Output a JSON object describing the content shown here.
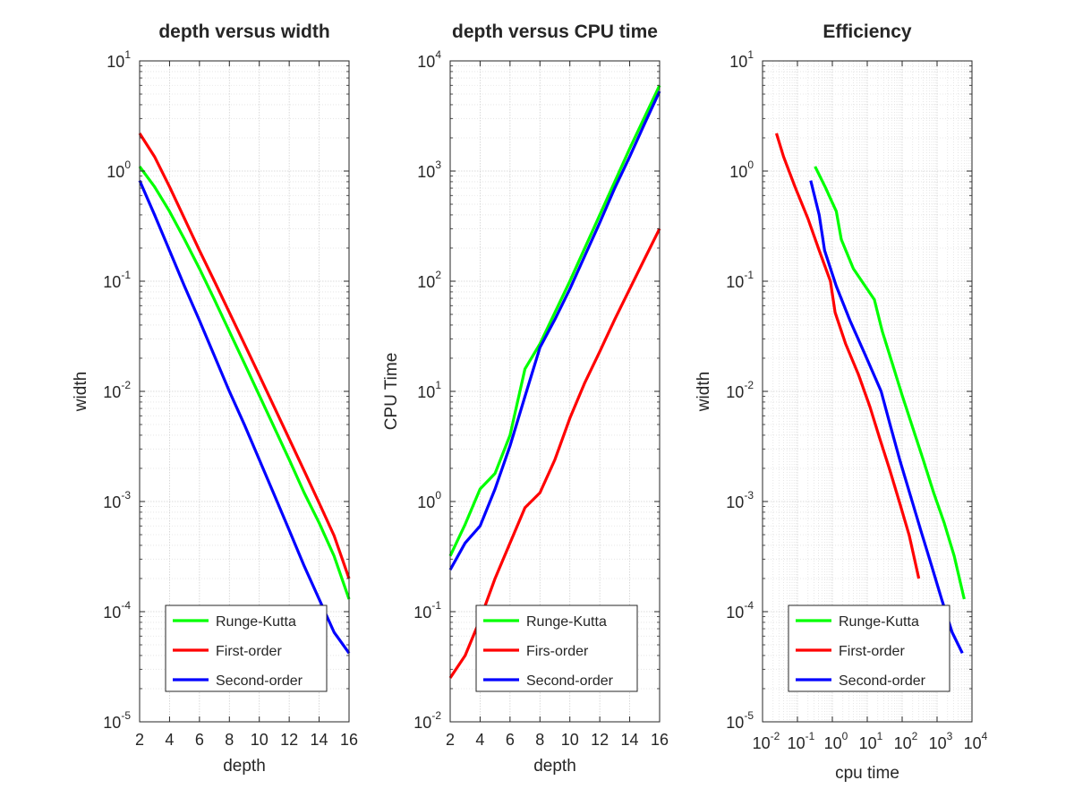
{
  "figure": {
    "background": "#ffffff"
  },
  "colors": {
    "green": "#00ff00",
    "red": "#ff0000",
    "blue": "#0000ff",
    "axis": "#262626"
  },
  "chart_data": [
    {
      "type": "line",
      "title": "depth versus width",
      "xlabel": "depth",
      "ylabel": "width",
      "xscale": "linear",
      "yscale": "log",
      "xlim": [
        2,
        16
      ],
      "ylim": [
        1e-05,
        10
      ],
      "xticks": [
        "2",
        "4",
        "6",
        "8",
        "10",
        "12",
        "14",
        "16"
      ],
      "yticks": [
        {
          "base": "10",
          "exp": "-5"
        },
        {
          "base": "10",
          "exp": "-4"
        },
        {
          "base": "10",
          "exp": "-3"
        },
        {
          "base": "10",
          "exp": "-2"
        },
        {
          "base": "10",
          "exp": "-1"
        },
        {
          "base": "10",
          "exp": "0"
        },
        {
          "base": "10",
          "exp": "1"
        }
      ],
      "grid": true,
      "legend_position": "bottom-center",
      "series": [
        {
          "name": "Runge-Kutta",
          "color": "#00ff00",
          "x": [
            2,
            3,
            4,
            5,
            6,
            7,
            8,
            9,
            10,
            11,
            12,
            13,
            14,
            15,
            16
          ],
          "y": [
            1.1,
            0.72,
            0.43,
            0.24,
            0.13,
            0.068,
            0.035,
            0.018,
            0.0092,
            0.0047,
            0.0024,
            0.0012,
            0.00064,
            0.00032,
            0.00013
          ]
        },
        {
          "name": "First-order",
          "color": "#ff0000",
          "x": [
            2,
            3,
            4,
            5,
            6,
            7,
            8,
            9,
            10,
            11,
            12,
            13,
            14,
            15,
            16
          ],
          "y": [
            2.2,
            1.35,
            0.72,
            0.37,
            0.19,
            0.1,
            0.052,
            0.027,
            0.014,
            0.0072,
            0.0037,
            0.0019,
            0.00097,
            0.00049,
            0.0002
          ]
        },
        {
          "name": "Second-order",
          "color": "#0000ff",
          "x": [
            2,
            3,
            4,
            5,
            6,
            7,
            8,
            9,
            10,
            11,
            12,
            13,
            14,
            15,
            16
          ],
          "y": [
            0.82,
            0.4,
            0.19,
            0.09,
            0.044,
            0.021,
            0.01,
            0.005,
            0.0024,
            0.00115,
            0.00055,
            0.00026,
            0.00013,
            6.5e-05,
            4.2e-05
          ]
        }
      ]
    },
    {
      "type": "line",
      "title": "depth versus CPU time",
      "xlabel": "depth",
      "ylabel": "CPU Time",
      "xscale": "linear",
      "yscale": "log",
      "xlim": [
        2,
        16
      ],
      "ylim": [
        0.01,
        10000
      ],
      "xticks": [
        "2",
        "4",
        "6",
        "8",
        "10",
        "12",
        "14",
        "16"
      ],
      "yticks": [
        {
          "base": "10",
          "exp": "-2"
        },
        {
          "base": "10",
          "exp": "-1"
        },
        {
          "base": "10",
          "exp": "0"
        },
        {
          "base": "10",
          "exp": "1"
        },
        {
          "base": "10",
          "exp": "2"
        },
        {
          "base": "10",
          "exp": "3"
        },
        {
          "base": "10",
          "exp": "4"
        }
      ],
      "grid": true,
      "legend_position": "bottom-center",
      "series": [
        {
          "name": "Runge-Kutta",
          "color": "#00ff00",
          "x": [
            2,
            3,
            4,
            5,
            6,
            7,
            8,
            9,
            10,
            11,
            12,
            13,
            14,
            15,
            16
          ],
          "y": [
            0.32,
            0.62,
            1.3,
            1.8,
            4.0,
            16.0,
            27.0,
            52.0,
            100.0,
            200.0,
            400.0,
            800.0,
            1600.0,
            3100.0,
            6000.0
          ]
        },
        {
          "name": "Firs-order",
          "color": "#ff0000",
          "x": [
            2,
            3,
            4,
            5,
            6,
            7,
            8,
            9,
            10,
            11,
            12,
            13,
            14,
            15,
            16
          ],
          "y": [
            0.025,
            0.04,
            0.085,
            0.2,
            0.42,
            0.88,
            1.2,
            2.4,
            5.7,
            12.0,
            23.0,
            45.0,
            85.0,
            160.0,
            300.0
          ]
        },
        {
          "name": "Second-order",
          "color": "#0000ff",
          "x": [
            2,
            3,
            4,
            5,
            6,
            7,
            8,
            9,
            10,
            11,
            12,
            13,
            14,
            15,
            16
          ],
          "y": [
            0.24,
            0.42,
            0.6,
            1.3,
            3.2,
            9.0,
            25.0,
            45.0,
            85.0,
            170.0,
            340.0,
            700.0,
            1350.0,
            2700.0,
            5300.0
          ]
        }
      ]
    },
    {
      "type": "line",
      "title": "Efficiency",
      "xlabel": "cpu time",
      "ylabel": "width",
      "xscale": "log",
      "yscale": "log",
      "xlim": [
        0.01,
        10000
      ],
      "ylim": [
        1e-05,
        10
      ],
      "xticks": [
        {
          "base": "10",
          "exp": "-2"
        },
        {
          "base": "10",
          "exp": "-1"
        },
        {
          "base": "10",
          "exp": "0"
        },
        {
          "base": "10",
          "exp": "1"
        },
        {
          "base": "10",
          "exp": "2"
        },
        {
          "base": "10",
          "exp": "3"
        },
        {
          "base": "10",
          "exp": "4"
        }
      ],
      "yticks": [
        {
          "base": "10",
          "exp": "-5"
        },
        {
          "base": "10",
          "exp": "-4"
        },
        {
          "base": "10",
          "exp": "-3"
        },
        {
          "base": "10",
          "exp": "-2"
        },
        {
          "base": "10",
          "exp": "-1"
        },
        {
          "base": "10",
          "exp": "0"
        },
        {
          "base": "10",
          "exp": "1"
        }
      ],
      "grid": true,
      "legend_position": "bottom-center",
      "series": [
        {
          "name": "Runge-Kutta",
          "color": "#00ff00",
          "x": [
            0.32,
            0.62,
            1.3,
            1.8,
            4.0,
            16.0,
            27.0,
            52.0,
            100.0,
            200.0,
            400.0,
            800.0,
            1600.0,
            3100.0,
            6000.0
          ],
          "y": [
            1.1,
            0.72,
            0.43,
            0.24,
            0.13,
            0.068,
            0.035,
            0.018,
            0.0092,
            0.0047,
            0.0024,
            0.0012,
            0.00064,
            0.00032,
            0.00013
          ]
        },
        {
          "name": "First-order",
          "color": "#ff0000",
          "x": [
            0.025,
            0.04,
            0.085,
            0.2,
            0.42,
            0.88,
            1.2,
            2.4,
            5.7,
            12.0,
            23.0,
            45.0,
            85.0,
            160.0,
            300.0
          ],
          "y": [
            2.2,
            1.35,
            0.72,
            0.37,
            0.19,
            0.1,
            0.052,
            0.027,
            0.014,
            0.0072,
            0.0037,
            0.0019,
            0.00097,
            0.00049,
            0.0002
          ]
        },
        {
          "name": "Second-order",
          "color": "#0000ff",
          "x": [
            0.24,
            0.42,
            0.6,
            1.3,
            3.2,
            9.0,
            25.0,
            45.0,
            85.0,
            170.0,
            340.0,
            700.0,
            1350.0,
            2700.0,
            5300.0
          ],
          "y": [
            0.82,
            0.4,
            0.19,
            0.09,
            0.044,
            0.021,
            0.01,
            0.005,
            0.0024,
            0.00115,
            0.00055,
            0.00026,
            0.00013,
            6.5e-05,
            4.2e-05
          ]
        }
      ]
    }
  ]
}
